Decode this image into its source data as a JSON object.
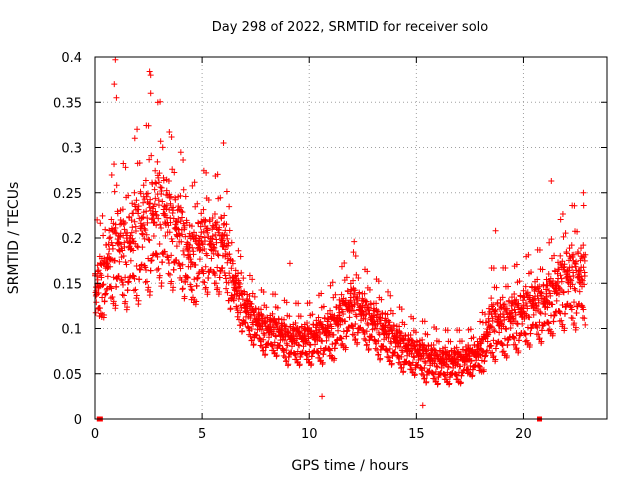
{
  "chart_data": {
    "type": "scatter",
    "title": "Day 298 of 2022, SRMTID for receiver solo",
    "xlabel": "GPS time / hours",
    "ylabel": "SRMTID / TECUs",
    "xlim": [
      0,
      23.9
    ],
    "ylim": [
      0,
      0.4
    ],
    "grid": true,
    "x_ticks": [
      0,
      5,
      10,
      15,
      20
    ],
    "x_tick_labels": [
      "0",
      "5",
      "10",
      "15",
      "20"
    ],
    "y_ticks": [
      0,
      0.05,
      0.1,
      0.15,
      0.2,
      0.25,
      0.3,
      0.35,
      0.4
    ],
    "y_tick_labels": [
      "0",
      "0.05",
      "0.1",
      "0.15",
      "0.2",
      "0.25",
      "0.3",
      "0.35",
      "0.4"
    ],
    "marker": "plus",
    "series_color": "#ff0000",
    "zero_markers": [
      0.2,
      0.25,
      20.75
    ],
    "envelope": {
      "hours": [
        0,
        0.5,
        1,
        1.5,
        2,
        2.5,
        3,
        3.5,
        4,
        4.5,
        5,
        5.5,
        6,
        6.5,
        7,
        7.5,
        8,
        8.5,
        9,
        9.5,
        10,
        10.5,
        11,
        11.5,
        12,
        12.5,
        13,
        13.5,
        14,
        14.5,
        15,
        15.5,
        16,
        16.5,
        17,
        17.5,
        18,
        18.5,
        19,
        19.5,
        20,
        20.5,
        21,
        21.5,
        22,
        22.5,
        22.9
      ],
      "low": [
        0.08,
        0.1,
        0.1,
        0.1,
        0.1,
        0.11,
        0.12,
        0.12,
        0.12,
        0.1,
        0.12,
        0.12,
        0.12,
        0.1,
        0.08,
        0.07,
        0.06,
        0.06,
        0.05,
        0.05,
        0.05,
        0.05,
        0.05,
        0.06,
        0.07,
        0.07,
        0.06,
        0.05,
        0.05,
        0.04,
        0.04,
        0.03,
        0.03,
        0.03,
        0.03,
        0.04,
        0.04,
        0.05,
        0.05,
        0.06,
        0.06,
        0.07,
        0.07,
        0.08,
        0.08,
        0.08,
        0.08
      ],
      "high": [
        0.2,
        0.24,
        0.3,
        0.28,
        0.33,
        0.33,
        0.36,
        0.32,
        0.3,
        0.26,
        0.28,
        0.27,
        0.28,
        0.2,
        0.17,
        0.15,
        0.14,
        0.14,
        0.13,
        0.13,
        0.13,
        0.14,
        0.15,
        0.17,
        0.19,
        0.17,
        0.16,
        0.15,
        0.13,
        0.12,
        0.11,
        0.11,
        0.1,
        0.1,
        0.1,
        0.1,
        0.11,
        0.17,
        0.17,
        0.17,
        0.18,
        0.19,
        0.19,
        0.21,
        0.24,
        0.24,
        0.24
      ]
    },
    "num_points": 2600,
    "outliers": [
      {
        "x": 0.95,
        "y": 0.397
      },
      {
        "x": 2.55,
        "y": 0.384
      },
      {
        "x": 2.6,
        "y": 0.38
      },
      {
        "x": 0.9,
        "y": 0.37
      },
      {
        "x": 2.6,
        "y": 0.36
      },
      {
        "x": 1.0,
        "y": 0.355
      },
      {
        "x": 6.0,
        "y": 0.305
      },
      {
        "x": 21.3,
        "y": 0.263
      },
      {
        "x": 22.8,
        "y": 0.25
      },
      {
        "x": 18.7,
        "y": 0.208
      },
      {
        "x": 9.1,
        "y": 0.172
      },
      {
        "x": 12.1,
        "y": 0.196
      },
      {
        "x": 15.3,
        "y": 0.015
      },
      {
        "x": 10.6,
        "y": 0.025
      },
      {
        "x": 0.1,
        "y": 0.22
      }
    ]
  }
}
